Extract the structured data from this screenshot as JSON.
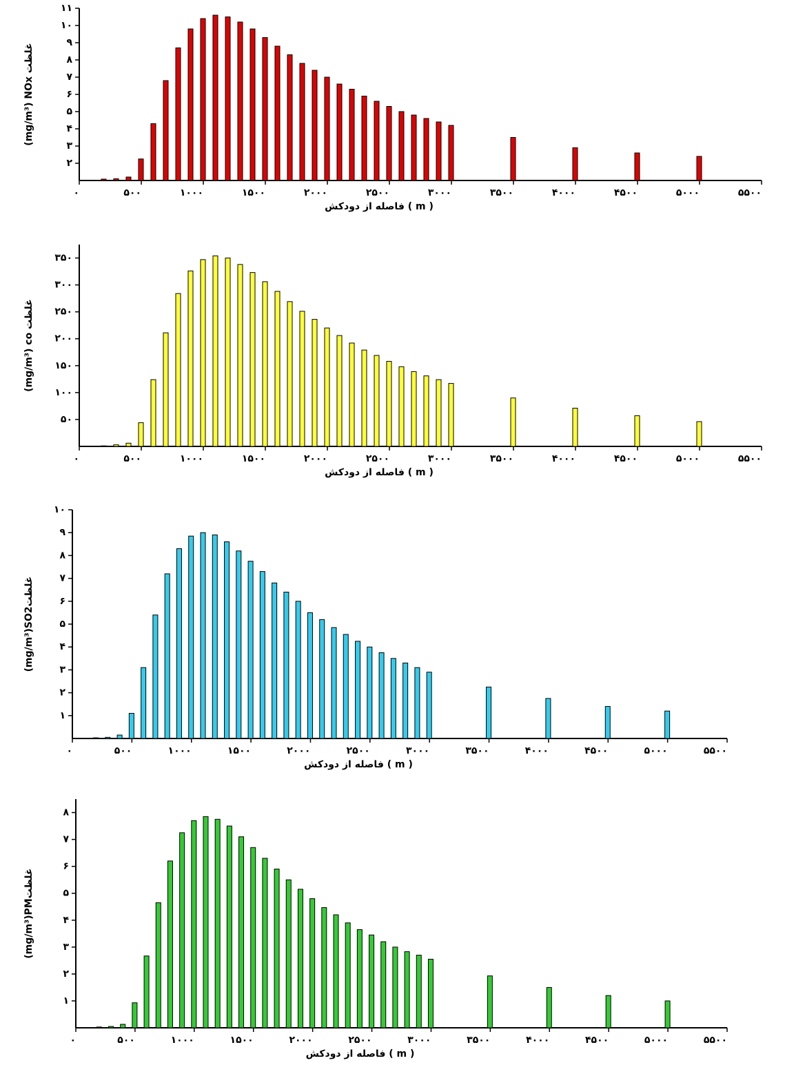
{
  "chart_data": [
    {
      "type": "bar",
      "ylabel": "(mg/m³) NOx غلظت",
      "xlabel": "فاصله از دودکش ( m )",
      "color": "#e00000",
      "x": [
        200,
        300,
        400,
        500,
        600,
        700,
        800,
        900,
        1000,
        1100,
        1200,
        1300,
        1400,
        1500,
        1600,
        1700,
        1800,
        1900,
        2000,
        2100,
        2200,
        2300,
        2400,
        2500,
        2600,
        2700,
        2800,
        2900,
        3000,
        3500,
        4000,
        4500,
        5000
      ],
      "values": [
        1.08,
        1.1,
        1.2,
        2.25,
        4.3,
        6.8,
        8.7,
        9.8,
        10.4,
        10.6,
        10.5,
        10.2,
        9.8,
        9.3,
        8.8,
        8.3,
        7.8,
        7.4,
        7.0,
        6.6,
        6.3,
        5.9,
        5.6,
        5.3,
        5.0,
        4.8,
        4.6,
        4.4,
        4.2,
        3.5,
        2.9,
        2.6,
        2.4
      ],
      "xlim": [
        0,
        5500
      ],
      "xticks": [
        {
          "value": 0,
          "label": "۰"
        },
        {
          "value": 500,
          "label": "۵۰۰"
        },
        {
          "value": 1000,
          "label": "۱۰۰۰"
        },
        {
          "value": 1500,
          "label": "۱۵۰۰"
        },
        {
          "value": 2000,
          "label": "۲۰۰۰"
        },
        {
          "value": 2500,
          "label": "۲۵۰۰"
        },
        {
          "value": 3000,
          "label": "۳۰۰۰"
        },
        {
          "value": 3500,
          "label": "۳۵۰۰"
        },
        {
          "value": 4000,
          "label": "۴۰۰۰"
        },
        {
          "value": 4500,
          "label": "۴۵۰۰"
        },
        {
          "value": 5000,
          "label": "۵۰۰۰"
        },
        {
          "value": 5500,
          "label": "۵۵۰۰"
        }
      ],
      "ylim": [
        1,
        11
      ],
      "yticks": [
        {
          "value": 2,
          "label": "۲"
        },
        {
          "value": 3,
          "label": "۳"
        },
        {
          "value": 4,
          "label": "۴"
        },
        {
          "value": 5,
          "label": "۵"
        },
        {
          "value": 6,
          "label": "۶"
        },
        {
          "value": 7,
          "label": "۷"
        },
        {
          "value": 8,
          "label": "۸"
        },
        {
          "value": 9,
          "label": "۹"
        },
        {
          "value": 10,
          "label": "۱۰"
        },
        {
          "value": 11,
          "label": "۱۱"
        }
      ]
    },
    {
      "type": "bar",
      "ylabel": "(mg/m³) co غلظت",
      "xlabel": "فاصله از دودکش ( m )",
      "color": "#ffff33",
      "x": [
        200,
        300,
        400,
        500,
        600,
        700,
        800,
        900,
        1000,
        1100,
        1200,
        1300,
        1400,
        1500,
        1600,
        1700,
        1800,
        1900,
        2000,
        2100,
        2200,
        2300,
        2400,
        2500,
        2600,
        2700,
        2800,
        2900,
        3000,
        3500,
        4000,
        4500,
        5000
      ],
      "values": [
        1,
        3,
        6,
        44,
        124,
        211,
        284,
        326,
        347,
        354,
        350,
        338,
        323,
        306,
        288,
        269,
        251,
        236,
        220,
        206,
        192,
        179,
        169,
        158,
        148,
        139,
        131,
        124,
        117,
        90,
        71,
        57,
        46
      ],
      "xlim": [
        0,
        5500
      ],
      "xticks": [
        {
          "value": 0,
          "label": "۰"
        },
        {
          "value": 500,
          "label": "۵۰۰"
        },
        {
          "value": 1000,
          "label": "۱۰۰۰"
        },
        {
          "value": 1500,
          "label": "۱۵۰۰"
        },
        {
          "value": 2000,
          "label": "۲۰۰۰"
        },
        {
          "value": 2500,
          "label": "۲۵۰۰"
        },
        {
          "value": 3000,
          "label": "۳۰۰۰"
        },
        {
          "value": 3500,
          "label": "۳۵۰۰"
        },
        {
          "value": 4000,
          "label": "۴۰۰۰"
        },
        {
          "value": 4500,
          "label": "۴۵۰۰"
        },
        {
          "value": 5000,
          "label": "۵۰۰۰"
        },
        {
          "value": 5500,
          "label": "۵۵۰۰"
        }
      ],
      "ylim": [
        0,
        375
      ],
      "yticks": [
        {
          "value": 50,
          "label": "۵۰"
        },
        {
          "value": 100,
          "label": "۱۰۰"
        },
        {
          "value": 150,
          "label": "۱۵۰"
        },
        {
          "value": 200,
          "label": "۲۰۰"
        },
        {
          "value": 250,
          "label": "۲۵۰"
        },
        {
          "value": 300,
          "label": "۳۰۰"
        },
        {
          "value": 350,
          "label": "۳۵۰"
        }
      ]
    },
    {
      "type": "bar",
      "ylabel": "(mg/m³)SO2غلظت",
      "xlabel": "فاصله از دودکش ( m )",
      "color": "#33ccee",
      "x": [
        200,
        300,
        400,
        500,
        600,
        700,
        800,
        900,
        1000,
        1100,
        1200,
        1300,
        1400,
        1500,
        1600,
        1700,
        1800,
        1900,
        2000,
        2100,
        2200,
        2300,
        2400,
        2500,
        2600,
        2700,
        2800,
        2900,
        3000,
        3500,
        4000,
        4500,
        5000
      ],
      "values": [
        0.03,
        0.05,
        0.15,
        1.1,
        3.1,
        5.4,
        7.2,
        8.3,
        8.85,
        9.0,
        8.9,
        8.6,
        8.2,
        7.75,
        7.3,
        6.8,
        6.4,
        6.0,
        5.5,
        5.2,
        4.85,
        4.55,
        4.25,
        4.0,
        3.75,
        3.5,
        3.3,
        3.1,
        2.9,
        2.25,
        1.75,
        1.4,
        1.2
      ],
      "xlim": [
        0,
        5500
      ],
      "xticks": [
        {
          "value": 0,
          "label": "۰"
        },
        {
          "value": 500,
          "label": "۵۰۰"
        },
        {
          "value": 1000,
          "label": "۱۰۰۰"
        },
        {
          "value": 1500,
          "label": "۱۵۰۰"
        },
        {
          "value": 2000,
          "label": "۲۰۰۰"
        },
        {
          "value": 2500,
          "label": "۲۵۰۰"
        },
        {
          "value": 3000,
          "label": "۳۰۰۰"
        },
        {
          "value": 3500,
          "label": "۳۵۰۰"
        },
        {
          "value": 4000,
          "label": "۴۰۰۰"
        },
        {
          "value": 4500,
          "label": "۴۵۰۰"
        },
        {
          "value": 5000,
          "label": "۵۰۰۰"
        },
        {
          "value": 5500,
          "label": "۵۵۰۰"
        }
      ],
      "ylim": [
        0,
        10
      ],
      "yticks": [
        {
          "value": 1,
          "label": "۱"
        },
        {
          "value": 2,
          "label": "۲"
        },
        {
          "value": 3,
          "label": "۳"
        },
        {
          "value": 4,
          "label": "۴"
        },
        {
          "value": 5,
          "label": "۵"
        },
        {
          "value": 6,
          "label": "۶"
        },
        {
          "value": 7,
          "label": "۷"
        },
        {
          "value": 8,
          "label": "۸"
        },
        {
          "value": 9,
          "label": "۹"
        },
        {
          "value": 10,
          "label": "۱۰"
        }
      ]
    },
    {
      "type": "bar",
      "ylabel": "(mg/m³)PMغلظت",
      "xlabel": "فاصله از دودکش ( m )",
      "color": "#33cc33",
      "x": [
        200,
        300,
        400,
        500,
        600,
        700,
        800,
        900,
        1000,
        1100,
        1200,
        1300,
        1400,
        1500,
        1600,
        1700,
        1800,
        1900,
        2000,
        2100,
        2200,
        2300,
        2400,
        2500,
        2600,
        2700,
        2800,
        2900,
        3000,
        3500,
        4000,
        4500,
        5000
      ],
      "values": [
        0.03,
        0.05,
        0.13,
        0.93,
        2.67,
        4.65,
        6.2,
        7.25,
        7.7,
        7.85,
        7.75,
        7.5,
        7.1,
        6.7,
        6.3,
        5.9,
        5.5,
        5.15,
        4.8,
        4.47,
        4.2,
        3.9,
        3.65,
        3.45,
        3.2,
        3.0,
        2.83,
        2.7,
        2.55,
        1.93,
        1.5,
        1.2,
        1.0
      ],
      "xlim": [
        0,
        5500
      ],
      "xticks": [
        {
          "value": 0,
          "label": "۰"
        },
        {
          "value": 500,
          "label": "۵۰۰"
        },
        {
          "value": 1000,
          "label": "۱۰۰۰"
        },
        {
          "value": 1500,
          "label": "۱۵۰۰"
        },
        {
          "value": 2000,
          "label": "۲۰۰۰"
        },
        {
          "value": 2500,
          "label": "۲۵۰۰"
        },
        {
          "value": 3000,
          "label": "۳۰۰۰"
        },
        {
          "value": 3500,
          "label": "۳۵۰۰"
        },
        {
          "value": 4000,
          "label": "۴۰۰۰"
        },
        {
          "value": 4500,
          "label": "۴۵۰۰"
        },
        {
          "value": 5000,
          "label": "۵۰۰۰"
        },
        {
          "value": 5500,
          "label": "۵۵۰۰"
        }
      ],
      "ylim": [
        0,
        8.5
      ],
      "yticks": [
        {
          "value": 1,
          "label": "۱"
        },
        {
          "value": 2,
          "label": "۲"
        },
        {
          "value": 3,
          "label": "۳"
        },
        {
          "value": 4,
          "label": "۴"
        },
        {
          "value": 5,
          "label": "۵"
        },
        {
          "value": 6,
          "label": "۶"
        },
        {
          "value": 7,
          "label": "۷"
        },
        {
          "value": 8,
          "label": "۸"
        }
      ]
    }
  ]
}
